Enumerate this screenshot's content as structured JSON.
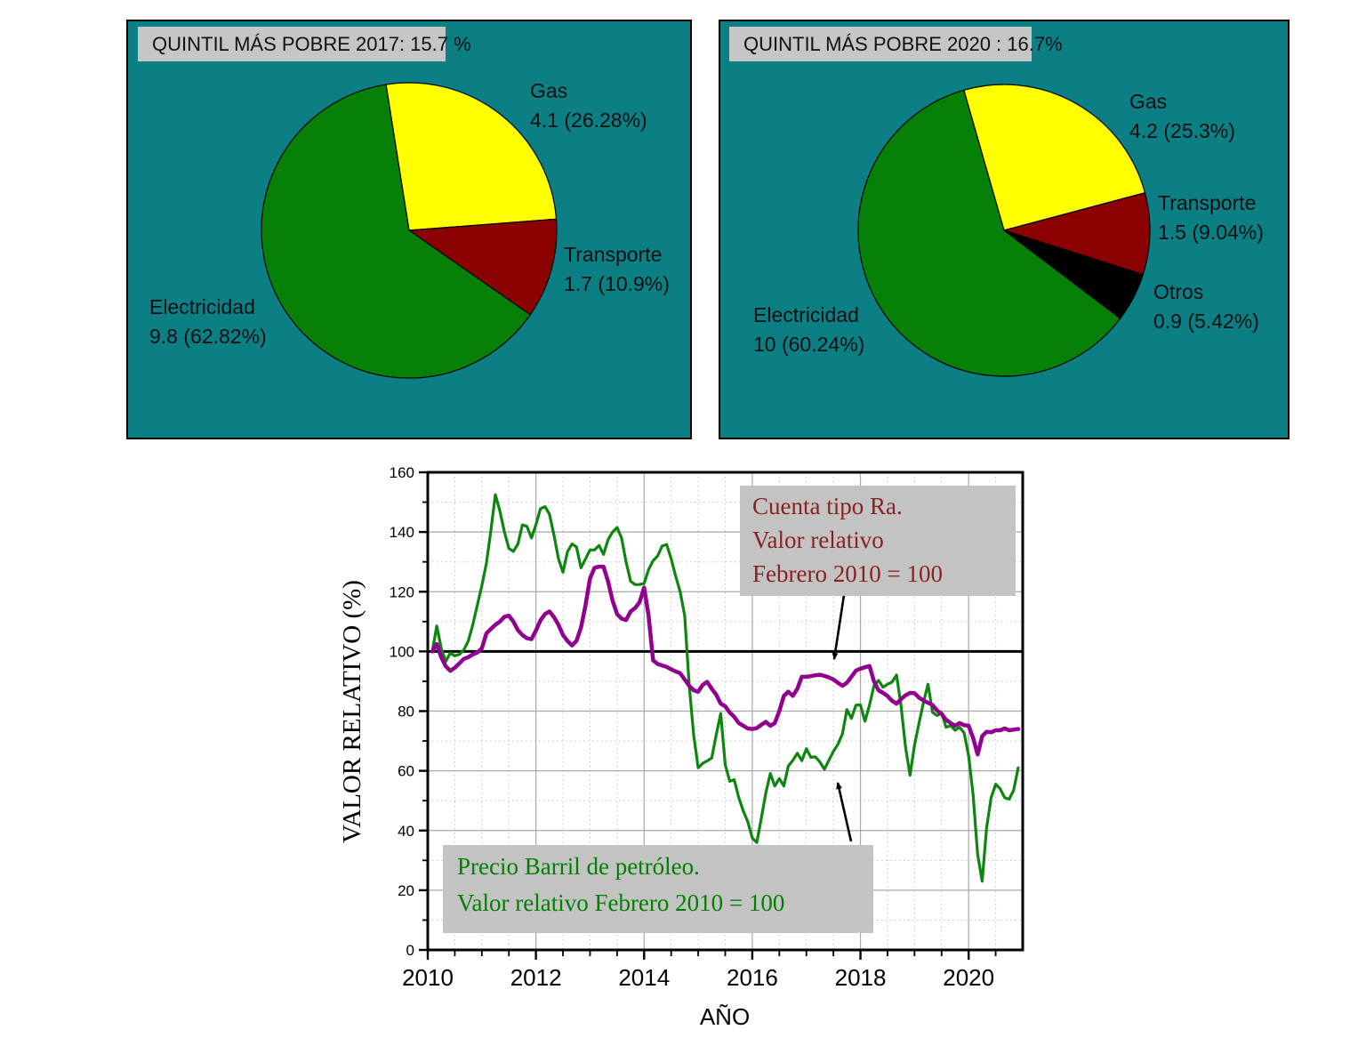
{
  "chart_data": [
    {
      "id": "pie_2017",
      "type": "pie",
      "title": "QUINTIL MÁS POBRE 2017: 15.7 %",
      "start_angle_deg": 99,
      "background": "#0B7F84",
      "slices": [
        {
          "label": "Gas",
          "value": 4.1,
          "pct": 26.28,
          "display": "4.1 (26.28%)",
          "color": "#FFFF00"
        },
        {
          "label": "Transporte",
          "value": 1.7,
          "pct": 10.9,
          "display": "1.7 (10.9%)",
          "color": "#8B0000"
        },
        {
          "label": "Electricidad",
          "value": 9.8,
          "pct": 62.82,
          "display": "9.8 (62.82%)",
          "color": "#078007"
        }
      ]
    },
    {
      "id": "pie_2020",
      "type": "pie",
      "title": "QUINTIL MÁS POBRE 2020 : 16.7%",
      "start_angle_deg": 106,
      "background": "#0B7F84",
      "slices": [
        {
          "label": "Gas",
          "value": 4.2,
          "pct": 25.3,
          "display": "4.2 (25.3%)",
          "color": "#FFFF00"
        },
        {
          "label": "Transporte",
          "value": 1.5,
          "pct": 9.04,
          "display": "1.5 (9.04%)",
          "color": "#8B0000"
        },
        {
          "label": "Otros",
          "value": 0.9,
          "pct": 5.42,
          "display": "0.9 (5.42%)",
          "color": "#000000"
        },
        {
          "label": "Electricidad",
          "value": 10,
          "pct": 60.24,
          "display": "10 (60.24%)",
          "color": "#078007"
        }
      ]
    },
    {
      "id": "relative_value_lines",
      "type": "line",
      "xlabel": "AÑO",
      "ylabel": "VALOR RELATIVO (%)",
      "xlim": [
        2010,
        2021
      ],
      "ylim": [
        0,
        160
      ],
      "xticks": [
        2010,
        2012,
        2014,
        2016,
        2018,
        2020
      ],
      "yticks": [
        0,
        20,
        40,
        60,
        80,
        100,
        120,
        140,
        160
      ],
      "x_minor_step": 0.5,
      "y_minor_step": 10,
      "grid": "on",
      "ref_line": 100,
      "x_start": 2010.0833,
      "x_step": 0.08333,
      "series": [
        {
          "name": "Precio Barril de petróleo. Valor relativo Febrero 2010 = 100",
          "color": "#0E850E",
          "width": 3.2,
          "values": [
            100,
            108.5,
            101,
            96.7,
            99.5,
            98.5,
            99,
            100.5,
            103.5,
            109,
            115.5,
            122,
            129.5,
            140.3,
            152.5,
            147,
            140,
            134.5,
            133.5,
            136,
            142.4,
            141.9,
            138,
            142.4,
            147.8,
            148.5,
            146,
            139,
            131,
            126.5,
            133.4,
            136,
            135,
            128,
            131,
            134,
            134,
            135.5,
            132.5,
            137.4,
            140,
            141.5,
            138,
            130,
            123.5,
            122.4,
            122.4,
            122.8,
            127.4,
            130.4,
            132,
            135.3,
            135.8,
            131,
            125.3,
            120,
            112,
            89,
            72,
            61,
            62.5,
            63.3,
            64.3,
            72,
            79.2,
            62,
            56.5,
            57,
            51,
            46.5,
            43,
            37.5,
            36,
            44,
            52.6,
            59.1,
            54.9,
            57.4,
            54.9,
            61.6,
            63.5,
            65.9,
            63.4,
            67.4,
            64.5,
            64.7,
            63,
            60.5,
            63.5,
            66.5,
            68.9,
            72.4,
            80.5,
            77.6,
            82,
            82.1,
            76.6,
            82,
            88.5,
            90.3,
            88,
            89,
            89.7,
            92.1,
            82,
            68,
            58.5,
            68.6,
            76,
            83,
            89,
            79.6,
            78.5,
            79.5,
            74.6,
            75.1,
            73.6,
            74.6,
            72.7,
            65,
            52,
            32,
            23,
            41,
            51,
            55.5,
            54,
            51,
            50.5,
            53.5,
            61
          ]
        },
        {
          "name": "Cuenta tipo Ra. Valor relativo Febrero 2010 = 100",
          "color": "#91008F",
          "width": 4.5,
          "values": [
            100,
            102.5,
            98,
            95,
            93.5,
            94.5,
            96,
            97.5,
            98.1,
            99,
            99.6,
            101,
            106,
            107.5,
            108.9,
            110,
            111.6,
            112,
            110,
            107.1,
            105.5,
            104.4,
            104.1,
            107,
            110.4,
            112.5,
            113.4,
            111.5,
            108.9,
            105.5,
            103.5,
            102,
            103.5,
            108,
            115.5,
            124.4,
            128,
            128.4,
            128.4,
            123.5,
            117,
            112.5,
            111,
            110.5,
            113.4,
            114.5,
            116.5,
            121.4,
            112,
            97,
            95.8,
            95.3,
            94.8,
            94,
            93.3,
            92.7,
            90.6,
            88.5,
            87,
            86.5,
            88.8,
            89.8,
            87.5,
            85.5,
            82.5,
            81.6,
            79.5,
            78.1,
            76,
            75.1,
            74.2,
            74,
            74.3,
            75.4,
            76.4,
            75.1,
            76,
            80,
            85.1,
            86.5,
            85.1,
            87.5,
            91.5,
            91.5,
            91.7,
            92,
            92.2,
            91.8,
            91.3,
            90.6,
            89.5,
            88.5,
            89.5,
            91.5,
            93.6,
            94.2,
            94.7,
            95.1,
            90,
            87,
            86.1,
            85.1,
            83.5,
            82.5,
            84,
            85.3,
            86.1,
            86,
            84.5,
            83.6,
            82.8,
            82.1,
            80.2,
            79.1,
            77.1,
            76,
            75.1,
            76,
            75.3,
            75.1,
            71,
            65.5,
            71.6,
            73.1,
            72.9,
            73.6,
            73.6,
            74.2,
            73.6,
            73.8,
            74
          ]
        }
      ],
      "annotations": [
        {
          "target": "purple-line",
          "color": "#8B2222",
          "lines": [
            "Cuenta tipo Ra.",
            "Valor relativo",
            "Febrero 2010 = 100"
          ]
        },
        {
          "target": "green-line",
          "color": "#008200",
          "lines": [
            "Precio Barril de petróleo.",
            "Valor relativo Febrero 2010 = 100"
          ]
        }
      ]
    }
  ],
  "colors": {
    "panel_teal": "#0B7F84",
    "grid_major": "#A8A8A8",
    "grid_minor": "#C2C2C2",
    "axis": "#000000",
    "title_box_gray": "#C6C6C6",
    "annotation_box_gray": "#C3C3C3"
  }
}
